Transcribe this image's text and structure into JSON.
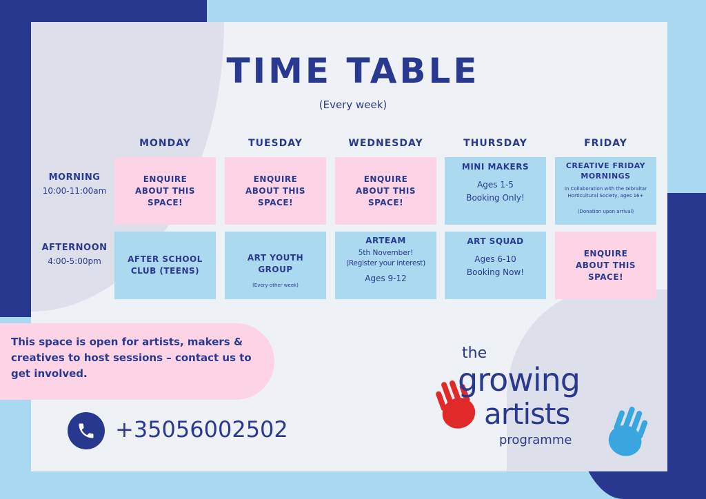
{
  "title": "TIME TABLE",
  "subtitle": "(Every  week)",
  "days": [
    "MONDAY",
    "TUESDAY",
    "WEDNESDAY",
    "THURSDAY",
    "FRIDAY"
  ],
  "rows": [
    {
      "label": "MORNING",
      "time": "10:00-11:00am"
    },
    {
      "label": "AFTERNOON",
      "time": "4:00-5:00pm"
    }
  ],
  "morning": [
    {
      "title": "ENQUIRE ABOUT THIS SPACE!"
    },
    {
      "title": "ENQUIRE ABOUT THIS SPACE!"
    },
    {
      "title": "ENQUIRE ABOUT THIS SPACE!"
    },
    {
      "title": "MINI MAKERS",
      "line1": "Ages 1-5",
      "line2": "Booking Only!"
    },
    {
      "title": "CREATIVE FRIDAY MORNINGS",
      "note": "In Collaboration with the Gibraltar Horticultural Society, ages 16+",
      "note2": "(Donation upon arrival)"
    }
  ],
  "afternoon": [
    {
      "title": "AFTER SCHOOL CLUB (TEENS)"
    },
    {
      "title": "ART YOUTH GROUP",
      "note": "(Every other week)"
    },
    {
      "title": "ARTEAM",
      "line1": "5th November!",
      "line2": "(Register your interest)",
      "line3": "Ages 9-12"
    },
    {
      "title": "ART SQUAD",
      "line1": "Ages 6-10",
      "line2": "Booking Now!"
    },
    {
      "title": "ENQUIRE ABOUT THIS SPACE!"
    }
  ],
  "callout": "This space is open for artists, makers & creatives to host sessions – contact us to get involved.",
  "phone": "+35056002502",
  "logo": {
    "the": "the",
    "growing": "growing",
    "artists": "artists",
    "programme": "programme"
  },
  "colors": {
    "navy": "#28388f",
    "light_blue": "#aad9f0",
    "pink": "#fcd4e6",
    "red_hand": "#e02a2a",
    "blue_hand": "#3aa6df"
  }
}
